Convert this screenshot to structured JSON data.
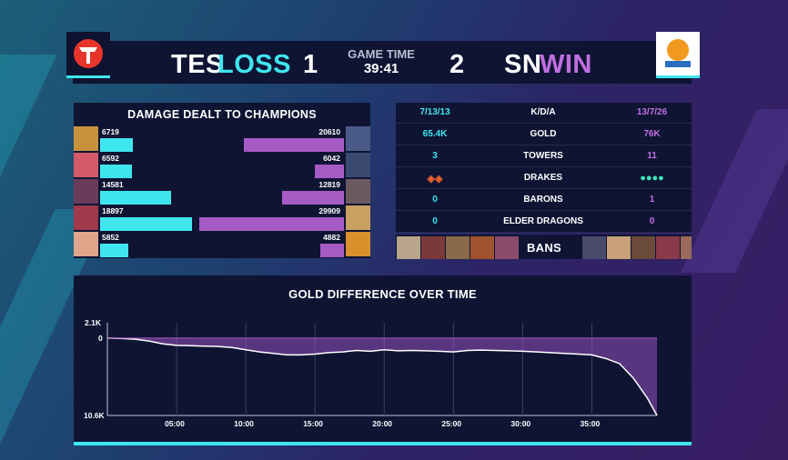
{
  "header": {
    "left_team": "TES",
    "left_result": "LOSS",
    "left_score": "1",
    "right_team": "SN",
    "right_result": "WIN",
    "right_score": "2",
    "game_time_label": "GAME TIME",
    "game_time": "39:41"
  },
  "damage": {
    "title": "DAMAGE DEALT TO CHAMPIONS",
    "blue": [
      6719,
      6592,
      14581,
      18897,
      5852
    ],
    "purple": [
      20610,
      6042,
      12819,
      29909,
      4882
    ],
    "blue_labels": [
      "6719",
      "6592",
      "14581",
      "18897",
      "5852"
    ],
    "purple_labels": [
      "20610",
      "6042",
      "12819",
      "29909",
      "4882"
    ]
  },
  "stats": {
    "rows": [
      {
        "left": "7/13/13",
        "label": "K/D/A",
        "right": "13/7/26"
      },
      {
        "left": "65.4K",
        "label": "GOLD",
        "right": "76K"
      },
      {
        "left": "3",
        "label": "TOWERS",
        "right": "11"
      },
      {
        "left": "",
        "label": "DRAKES",
        "right": ""
      },
      {
        "left": "0",
        "label": "BARONS",
        "right": "1"
      },
      {
        "left": "0",
        "label": "ELDER DRAGONS",
        "right": "0"
      }
    ],
    "bans_label": "BANS"
  },
  "gold_chart": {
    "title": "GOLD DIFFERENCE OVER TIME",
    "y_labels": [
      "2.1K",
      "0",
      "10.6K"
    ],
    "x_labels": [
      "05:00",
      "10:00",
      "15:00",
      "20:00",
      "25:00",
      "30:00",
      "35:00"
    ]
  },
  "colors": {
    "blue_team": "#3fe6ee",
    "purple_team": "#a65bc4",
    "panel": "#0f1433"
  },
  "chart_data": {
    "type": "area",
    "title": "GOLD DIFFERENCE OVER TIME",
    "x": [
      0,
      1,
      2,
      3,
      4,
      5,
      6,
      7,
      8,
      9,
      10,
      11,
      12,
      13,
      14,
      15,
      16,
      17,
      18,
      19,
      20,
      21,
      22,
      23,
      24,
      25,
      26,
      27,
      28,
      29,
      30,
      31,
      32,
      33,
      34,
      35,
      36,
      37,
      38,
      39,
      39.7
    ],
    "values": [
      0,
      -50,
      -150,
      -400,
      -800,
      -1000,
      -1050,
      -1100,
      -1150,
      -1300,
      -1600,
      -1900,
      -2100,
      -2300,
      -2300,
      -2200,
      -2000,
      -1900,
      -1700,
      -1800,
      -1600,
      -1750,
      -1700,
      -1750,
      -1800,
      -1900,
      -1700,
      -1650,
      -1700,
      -1750,
      -1800,
      -1900,
      -2000,
      -2100,
      -2200,
      -2300,
      -2800,
      -3500,
      -5500,
      -8200,
      -10600
    ],
    "ylim": [
      -10600,
      2100
    ],
    "xlim": [
      0,
      39.7
    ]
  }
}
